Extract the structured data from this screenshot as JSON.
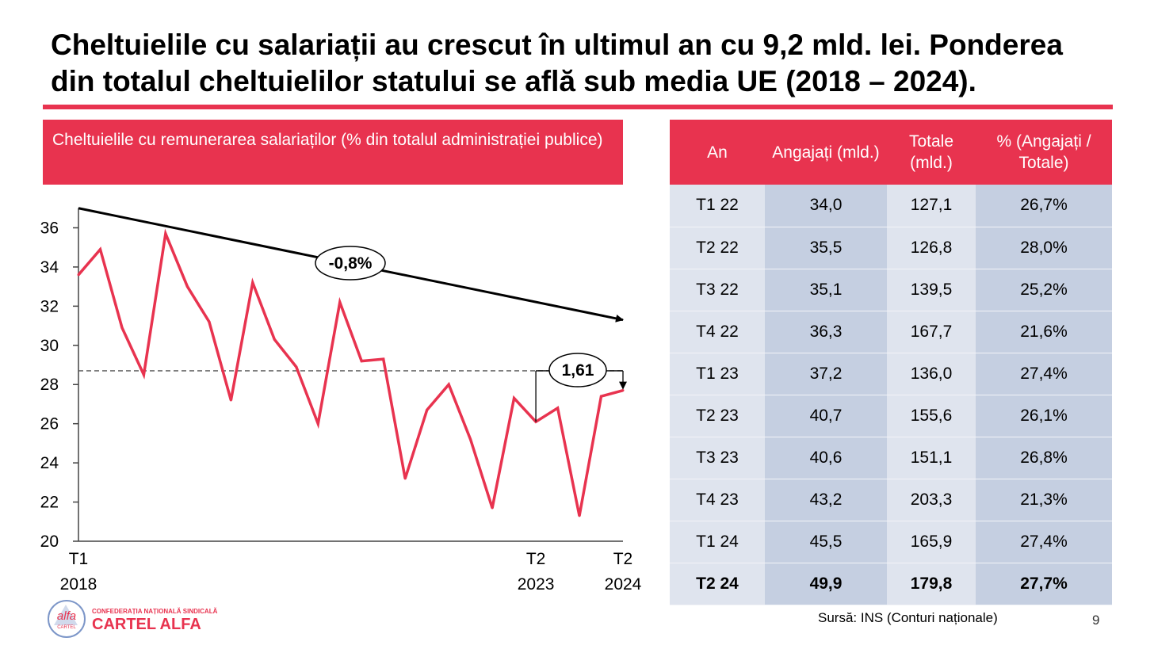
{
  "slide": {
    "title": "Cheltuielile cu salariații au crescut în ultimul an cu 9,2 mld. lei. Ponderea din totalul cheltuielilor statului se află sub media UE (2018 – 2024).",
    "page_number": "9",
    "source": "Sursă: INS (Conturi naționale)",
    "accent_color": "#e8334f"
  },
  "logo": {
    "mark_text": "alfa",
    "mark_subtext": "CARTEL",
    "org_line": "CONFEDERAȚIA NAȚIONALĂ SINDICALĂ",
    "org_name": "CARTEL ALFA"
  },
  "chart_header": {
    "title": "Cheltuielile cu remunerarea salariaților (% din totalul administrației publice)"
  },
  "chart_data": {
    "type": "line",
    "title": "Cheltuielile cu remunerarea salariaților (% din totalul administrației publice)",
    "xlabel": "",
    "ylabel": "",
    "ylim": [
      20,
      37
    ],
    "yticks": [
      20,
      22,
      24,
      26,
      28,
      30,
      32,
      34,
      36
    ],
    "grid": false,
    "legend": "none",
    "x_tick_labels": [
      {
        "index": 0,
        "line1": "T1",
        "line2": "2018"
      },
      {
        "index": 21,
        "line1": "T2",
        "line2": "2023"
      },
      {
        "index": 25,
        "line1": "T2",
        "line2": "2024"
      }
    ],
    "series": [
      {
        "color": "#e8334f",
        "values": [
          33.6,
          34.9,
          30.9,
          28.5,
          35.7,
          33.0,
          31.2,
          27.2,
          33.2,
          30.3,
          28.9,
          26.0,
          32.2,
          29.2,
          29.3,
          23.2,
          26.7,
          28.0,
          25.2,
          21.7,
          27.3,
          26.1,
          26.8,
          21.3,
          27.4,
          27.7
        ]
      }
    ],
    "trend_line": {
      "start": 37.0,
      "end": 31.3,
      "label": "-0,8%",
      "color": "#000000"
    },
    "reference_line": {
      "value": 28.7,
      "style": "dashed",
      "color": "#555555"
    },
    "gap_annotation": {
      "label": "1,61"
    }
  },
  "table": {
    "headers": [
      "An",
      "Angajați (mld.)",
      "Totale (mld.)",
      "% (Angajați / Totale)"
    ],
    "rows": [
      [
        "T1 22",
        "34,0",
        "127,1",
        "26,7%"
      ],
      [
        "T2 22",
        "35,5",
        "126,8",
        "28,0%"
      ],
      [
        "T3 22",
        "35,1",
        "139,5",
        "25,2%"
      ],
      [
        "T4 22",
        "36,3",
        "167,7",
        "21,6%"
      ],
      [
        "T1 23",
        "37,2",
        "136,0",
        "27,4%"
      ],
      [
        "T2 23",
        "40,7",
        "155,6",
        "26,1%"
      ],
      [
        "T3 23",
        "40,6",
        "151,1",
        "26,8%"
      ],
      [
        "T4 23",
        "43,2",
        "203,3",
        "21,3%"
      ],
      [
        "T1 24",
        "45,5",
        "165,9",
        "27,4%"
      ],
      [
        "T2 24",
        "49,9",
        "179,8",
        "27,7%"
      ]
    ],
    "bold_last_row": true
  }
}
